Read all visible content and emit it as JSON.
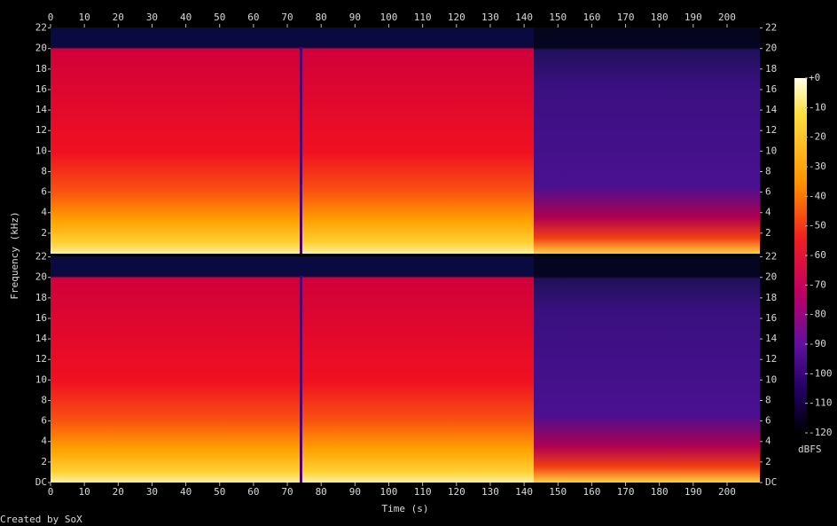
{
  "chart_data": {
    "type": "spectrogram",
    "xlabel": "Time (s)",
    "ylabel": "Frequency (kHz)",
    "colorbar_label": "dBFS",
    "credit": "Created by SoX",
    "xlim": [
      0,
      209.7
    ],
    "xticks": [
      0,
      10,
      20,
      30,
      40,
      50,
      60,
      70,
      80,
      90,
      100,
      110,
      120,
      130,
      140,
      150,
      160,
      170,
      180,
      190,
      200
    ],
    "clim": [
      -120,
      0
    ],
    "cticks": [
      {
        "value": 0,
        "label": "+0"
      },
      -10,
      -20,
      -30,
      -40,
      -50,
      -60,
      -70,
      -80,
      -90,
      -100,
      -110,
      -120
    ],
    "panels": [
      {
        "ylim": [
          0,
          22.05
        ],
        "yticks": [
          2,
          4,
          6,
          8,
          10,
          12,
          14,
          16,
          18,
          20,
          22
        ]
      },
      {
        "ylim": [
          0,
          22.05
        ],
        "yticks": [
          {
            "value": 0,
            "label": "DC"
          },
          2,
          4,
          6,
          8,
          10,
          12,
          14,
          16,
          18,
          20,
          22
        ]
      }
    ]
  }
}
